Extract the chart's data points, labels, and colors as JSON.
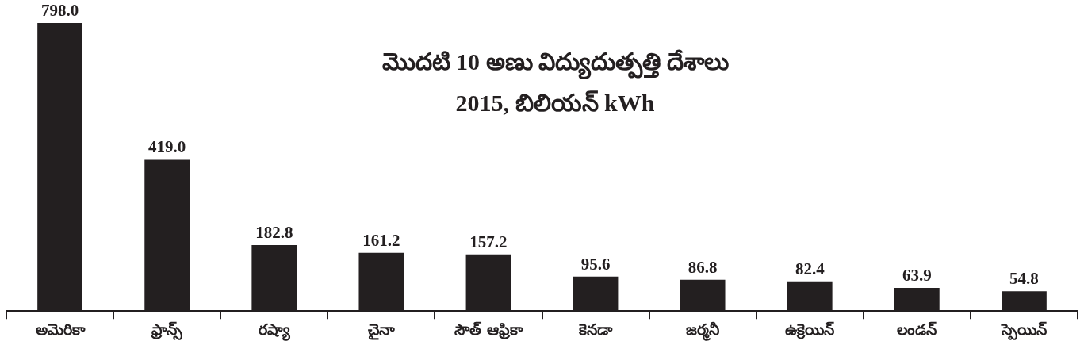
{
  "chart_data": {
    "type": "bar",
    "title": "మొదటి 10 అణు విద్యుదుత్పత్తి దేశాలు",
    "subtitle": "2015, బిలియన్ kWh",
    "categories": [
      "అమెరికా",
      "ఫ్రాన్స్",
      "రష్యా",
      "చైనా",
      "సౌత్ ఆఫ్రికా",
      "కెనడా",
      "జర్మనీ",
      "ఉక్రెయిన్",
      "లండన్",
      "స్పెయిన్"
    ],
    "values": [
      798.0,
      419.0,
      182.8,
      161.2,
      157.2,
      95.6,
      86.8,
      82.4,
      63.9,
      54.8
    ],
    "value_labels": [
      "798.0",
      "419.0",
      "182.8",
      "161.2",
      "157.2",
      "95.6",
      "86.8",
      "82.4",
      "63.9",
      "54.8"
    ],
    "color": "#231f20",
    "grid": false,
    "legend": false
  }
}
